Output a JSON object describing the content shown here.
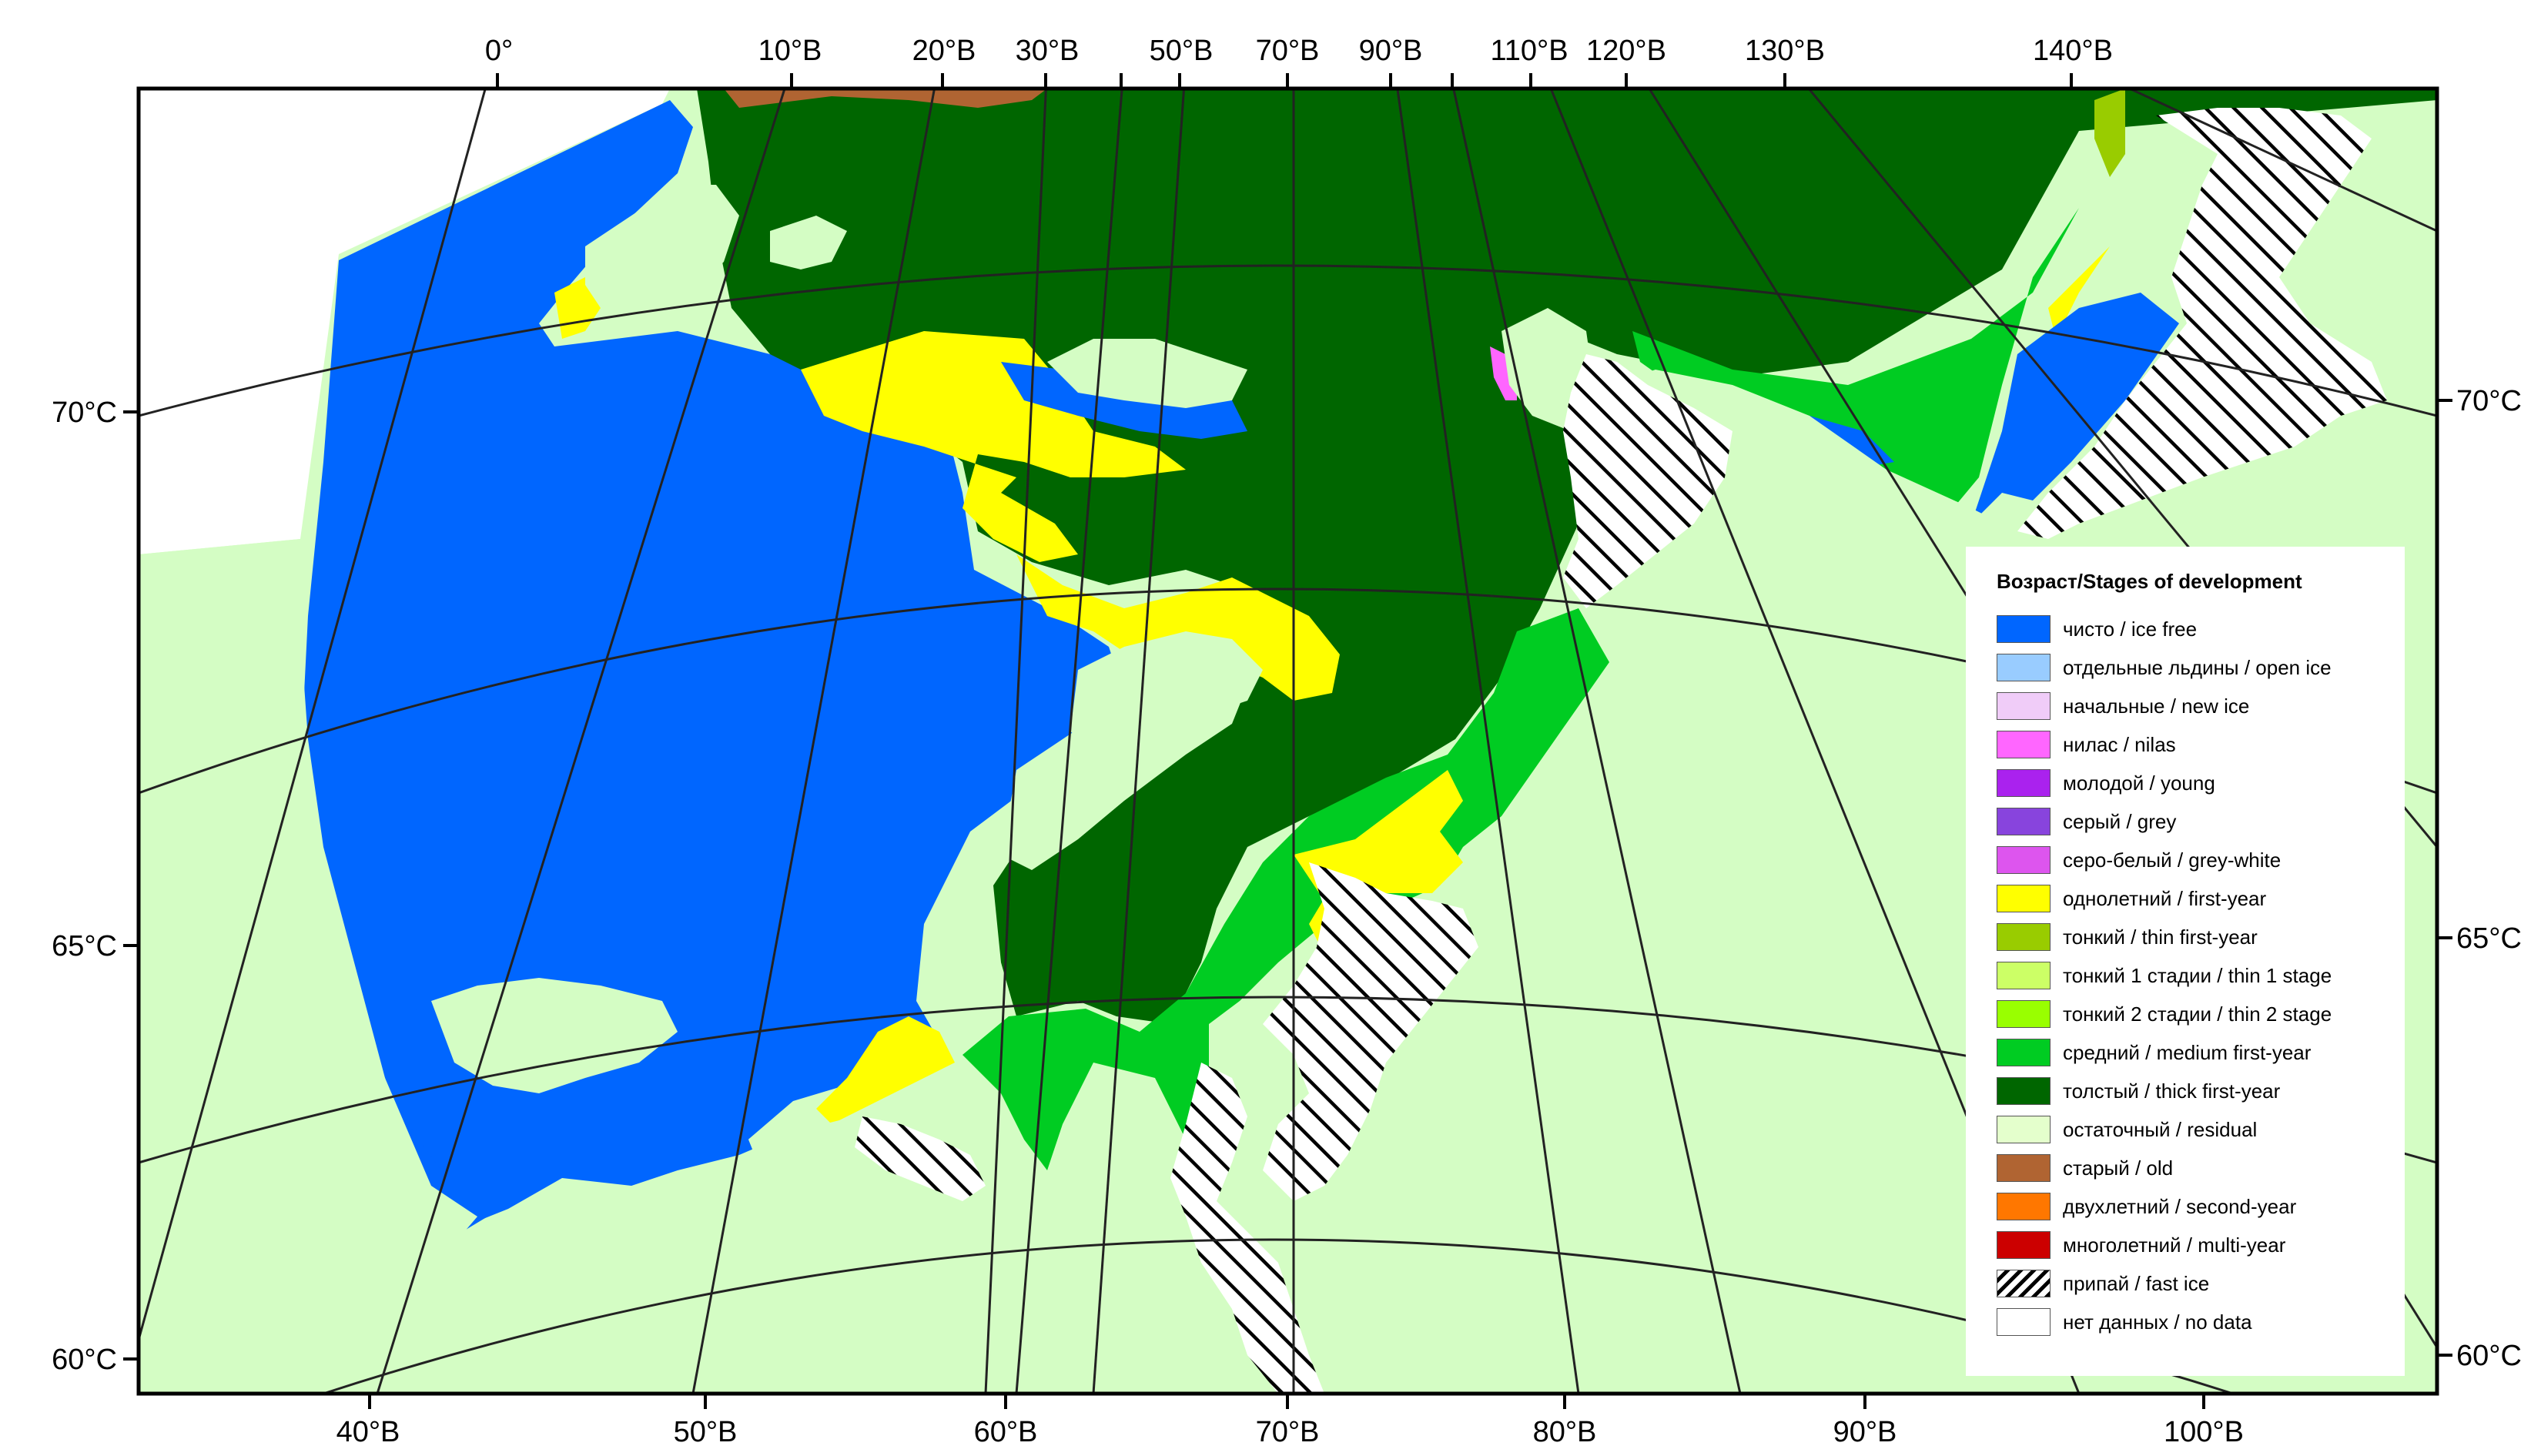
{
  "map": {
    "top_longitude_labels": [
      "0°",
      "10°В",
      "20°В",
      "30°В",
      "50°В",
      "70°В",
      "90°В",
      "110°В",
      "120°В",
      "130°В",
      "140°В"
    ],
    "bottom_longitude_labels": [
      "40°В",
      "50°В",
      "60°В",
      "70°В",
      "80°В",
      "90°В",
      "100°В"
    ],
    "left_latitude_labels": [
      "70°С",
      "65°С",
      "60°С"
    ],
    "right_latitude_labels": [
      "70°С",
      "65°С",
      "60°С"
    ],
    "colors": {
      "land": "#d4fdc4",
      "ice_free": "#0066ff",
      "first_year": "#ffff00",
      "medium_first_year": "#00cc22",
      "thick_first_year": "#006600",
      "old": "#b06432",
      "nilas": "#ff66ff",
      "thin_first_year": "#99cc00",
      "no_data": "#ffffff"
    }
  },
  "legend": {
    "title": "Возраст/Stages of development",
    "items": [
      {
        "label": "чисто / ice free",
        "color": "#0066ff",
        "icon": "solid"
      },
      {
        "label": "отдельные льдины / open ice",
        "color": "#99ccff",
        "icon": "solid"
      },
      {
        "label": "начальные / new ice",
        "color": "#f0ccf8",
        "icon": "solid"
      },
      {
        "label": "нилас / nilas",
        "color": "#ff66ff",
        "icon": "solid"
      },
      {
        "label": "молодой / young",
        "color": "#aa22ee",
        "icon": "solid"
      },
      {
        "label": "серый / grey",
        "color": "#8844dd",
        "icon": "solid"
      },
      {
        "label": "серо-белый / grey-white",
        "color": "#dd55ee",
        "icon": "solid"
      },
      {
        "label": "однолетний / first-year",
        "color": "#ffff00",
        "icon": "solid"
      },
      {
        "label": "тонкий / thin first-year",
        "color": "#99cc00",
        "icon": "solid"
      },
      {
        "label": "тонкий 1 стадии / thin 1 stage",
        "color": "#ccff66",
        "icon": "solid"
      },
      {
        "label": "тонкий 2 стадии / thin 2 stage",
        "color": "#99ff00",
        "icon": "solid"
      },
      {
        "label": "средний / medium first-year",
        "color": "#00cc22",
        "icon": "solid"
      },
      {
        "label": "толстый / thick first-year",
        "color": "#006600",
        "icon": "solid"
      },
      {
        "label": "остаточный / residual",
        "color": "#e4ffcc",
        "icon": "solid"
      },
      {
        "label": "старый / old",
        "color": "#b06432",
        "icon": "solid"
      },
      {
        "label": "двухлетний / second-year",
        "color": "#ff7700",
        "icon": "solid"
      },
      {
        "label": "многолетний / multi-year",
        "color": "#cc0000",
        "icon": "solid"
      },
      {
        "label": "припай / fast ice",
        "color": "#ffffff",
        "icon": "hatched"
      },
      {
        "label": "нет данных / no data",
        "color": "#ffffff",
        "icon": "solid"
      }
    ]
  }
}
